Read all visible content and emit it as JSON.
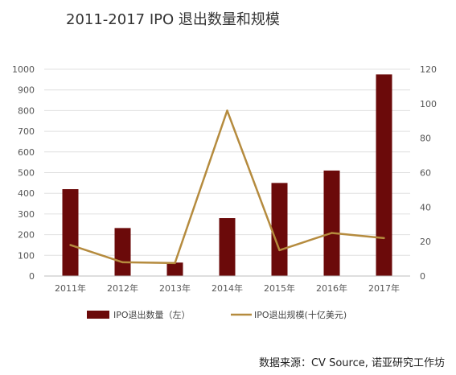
{
  "title": "2011-2017 IPO 退出数量和规模",
  "source": "数据来源：CV Source, 诺亚研究工作坊",
  "colors": {
    "bar": "#6b0a0a",
    "line": "#b58b3e",
    "grid": "#e0e0e0",
    "axis": "#bdbdbd"
  },
  "chart_data": {
    "type": "bar",
    "categories": [
      "2011年",
      "2012年",
      "2013年",
      "2014年",
      "2015年",
      "2016年",
      "2017年"
    ],
    "series": [
      {
        "name": "IPO退出数量（左）",
        "type": "bar",
        "axis": "left",
        "values": [
          420,
          232,
          65,
          280,
          450,
          510,
          975
        ]
      },
      {
        "name": "IPO退出规模(十亿美元)",
        "type": "line",
        "axis": "right",
        "values": [
          18,
          8,
          7.5,
          96,
          15,
          25,
          22
        ]
      }
    ],
    "yleft": {
      "lim": [
        0,
        1000
      ],
      "ticks": [
        "0",
        "100",
        "200",
        "300",
        "400",
        "500",
        "600",
        "700",
        "800",
        "900",
        "1000"
      ]
    },
    "yright": {
      "lim": [
        0,
        120
      ],
      "ticks": [
        "0",
        "20",
        "40",
        "60",
        "80",
        "100",
        "120"
      ]
    },
    "grid": true,
    "legend": "bottom"
  }
}
